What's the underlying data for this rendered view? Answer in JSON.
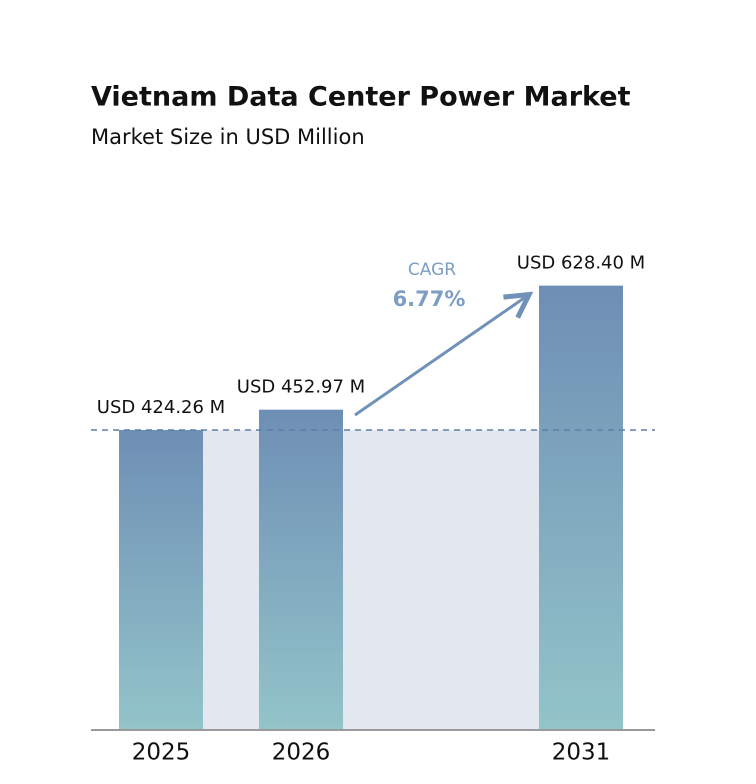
{
  "chart_data": {
    "type": "bar",
    "title": "Vietnam Data Center Power Market",
    "subtitle": "Market Size in USD Million",
    "categories": [
      "2025",
      "2026",
      null,
      "2031"
    ],
    "values": [
      424.26,
      452.97,
      null,
      628.4
    ],
    "value_labels": [
      "USD 424.26 M",
      "USD 452.97 M",
      null,
      "USD 628.40 M"
    ],
    "gradient": [
      "#6e8fb5",
      "#93c4c9"
    ],
    "ylim": [
      0,
      700
    ],
    "annotations": {
      "cagr_label": "CAGR",
      "cagr_value": "6.77%"
    }
  }
}
